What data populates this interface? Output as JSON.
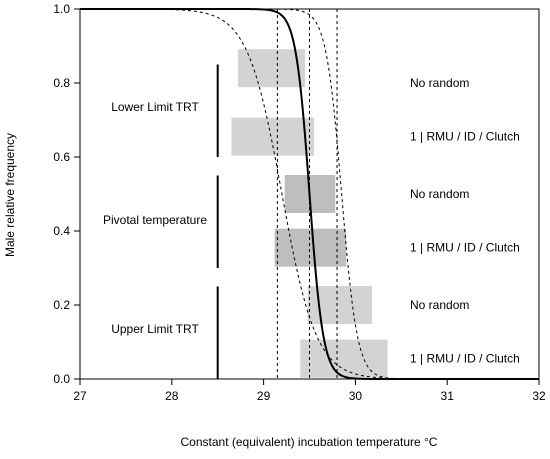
{
  "chart_data": {
    "type": "line",
    "xlabel": "Constant (equivalent) incubation temperature °C",
    "ylabel": "Male relative frequency",
    "xlim": [
      27,
      32
    ],
    "ylim": [
      0,
      1
    ],
    "x_ticks": [
      27,
      28,
      29,
      30,
      31,
      32
    ],
    "y_ticks": [
      0.0,
      0.2,
      0.4,
      0.6,
      0.8,
      1.0
    ],
    "y_tick_labels": [
      "0.0",
      "0.2",
      "0.4",
      "0.6",
      "0.8",
      "1.0"
    ],
    "curves": [
      {
        "style": "solid",
        "pivotal": 29.5,
        "transition": 0.22
      },
      {
        "style": "dashed",
        "pivotal": 29.2,
        "transition": 0.55
      },
      {
        "style": "dashed",
        "pivotal": 29.85,
        "transition": 0.25
      }
    ],
    "vertical_dashed_lines": [
      29.15,
      29.5,
      29.8
    ],
    "intervals": [
      {
        "group": "Lower Limit TRT",
        "model": "No random",
        "x_min": 28.72,
        "x_max": 29.45,
        "y_center": 0.84,
        "shade": "#d3d3d3"
      },
      {
        "group": "Lower Limit TRT",
        "model": "1 | RMU / ID / Clutch",
        "x_min": 28.65,
        "x_max": 29.55,
        "y_center": 0.655,
        "shade": "#d3d3d3"
      },
      {
        "group": "Pivotal temperature",
        "model": "No random",
        "x_min": 29.23,
        "x_max": 29.78,
        "y_center": 0.5,
        "shade": "#bebebe"
      },
      {
        "group": "Pivotal temperature",
        "model": "1 | RMU / ID / Clutch",
        "x_min": 29.12,
        "x_max": 29.9,
        "y_center": 0.355,
        "shade": "#bebebe"
      },
      {
        "group": "Upper Limit TRT",
        "model": "No random",
        "x_min": 29.48,
        "x_max": 30.18,
        "y_center": 0.2,
        "shade": "#d3d3d3"
      },
      {
        "group": "Upper Limit TRT",
        "model": "1 | RMU / ID / Clutch",
        "x_min": 29.4,
        "x_max": 30.35,
        "y_center": 0.055,
        "shade": "#d3d3d3"
      }
    ],
    "group_labels": [
      {
        "text": "Lower Limit TRT",
        "y": 0.735,
        "bar_y": [
          0.6,
          0.85
        ]
      },
      {
        "text": "Pivotal temperature",
        "y": 0.43,
        "bar_y": [
          0.3,
          0.55
        ]
      },
      {
        "text": "Upper Limit TRT",
        "y": 0.135,
        "bar_y": [
          0.0,
          0.25
        ]
      }
    ],
    "model_labels": [
      {
        "text": "No random",
        "y": 0.8
      },
      {
        "text": "1 | RMU / ID / Clutch",
        "y": 0.655
      },
      {
        "text": "No random",
        "y": 0.5
      },
      {
        "text": "1 | RMU / ID / Clutch",
        "y": 0.355
      },
      {
        "text": "No random",
        "y": 0.2
      },
      {
        "text": "1 | RMU / ID / Clutch",
        "y": 0.055
      }
    ],
    "grid": false,
    "legend": "none"
  }
}
